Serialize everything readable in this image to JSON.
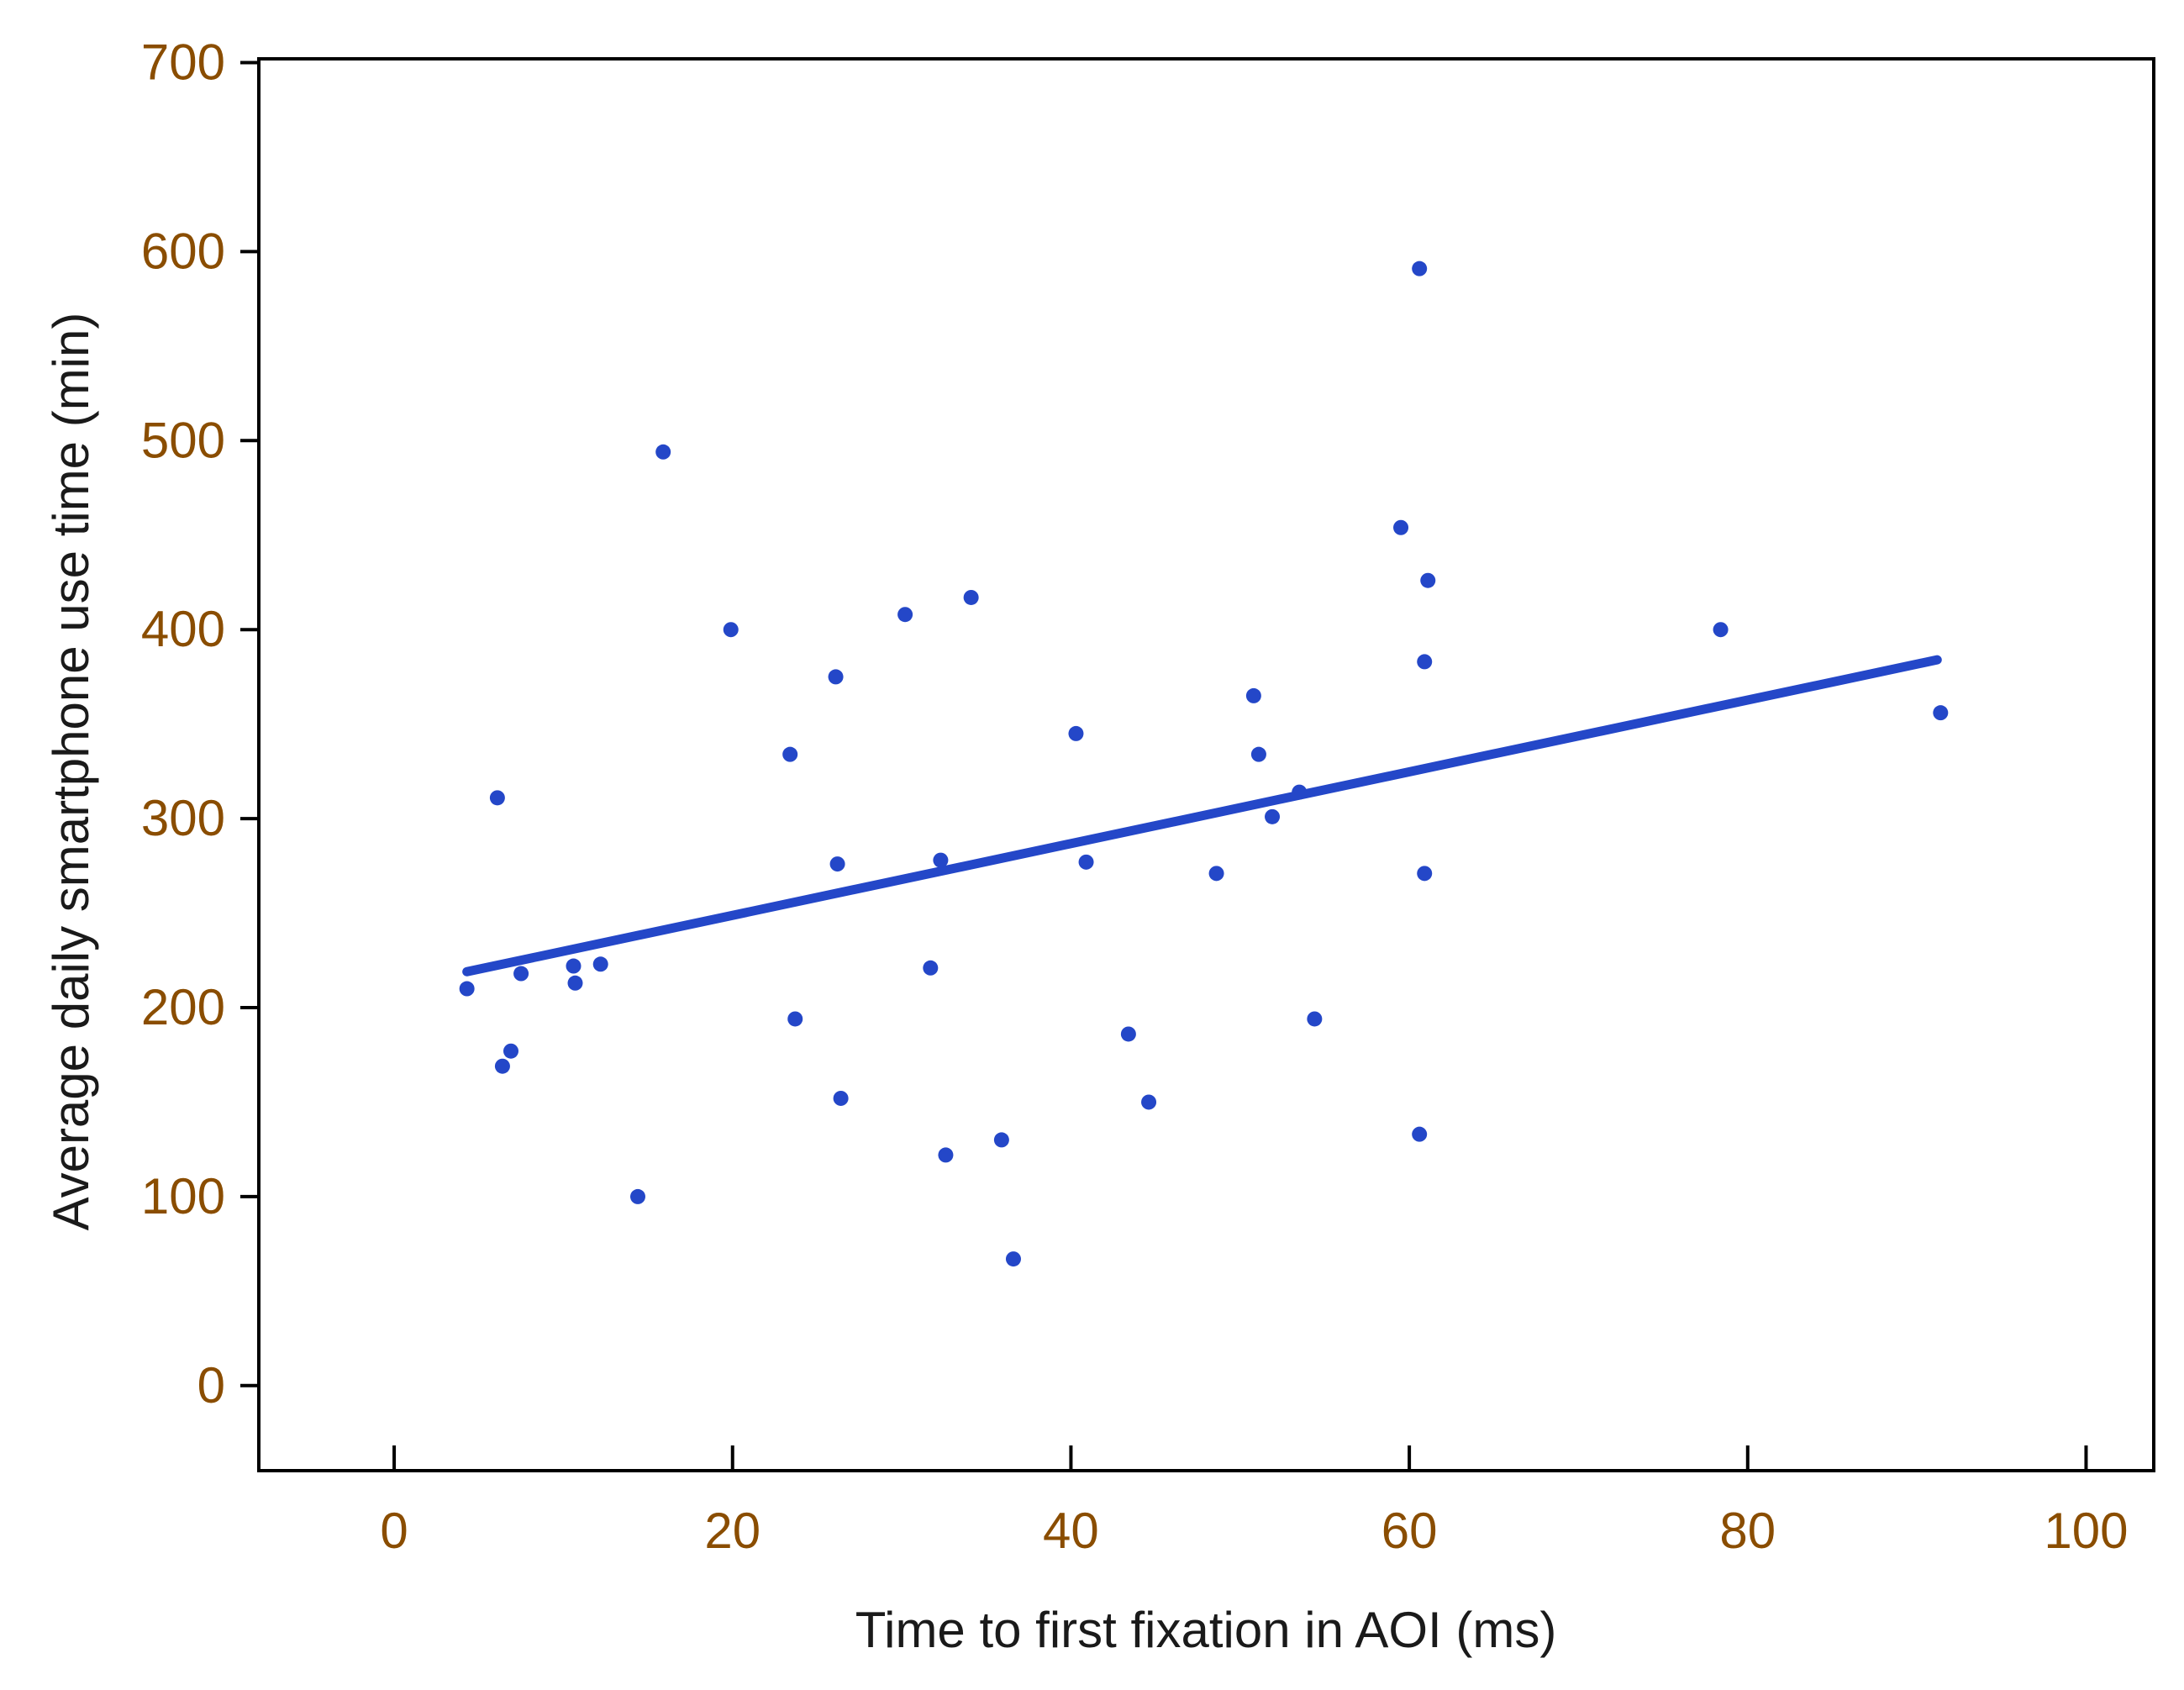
{
  "colors": {
    "points": "#2447c8",
    "fit_line": "#2447c8",
    "tick_labels": "#8a4d00",
    "axis_titles": "#1a1a1a",
    "frame": "#000000"
  },
  "chart_data": {
    "type": "scatter",
    "title": "",
    "xlabel": "Time to first fixation in AOI (ms)",
    "ylabel": "Average daily smartphone use time (min)",
    "xlim": [
      -8,
      104
    ],
    "ylim": [
      -45,
      702
    ],
    "xticks": [
      0,
      20,
      40,
      60,
      80,
      100
    ],
    "yticks": [
      0,
      100,
      200,
      300,
      400,
      500,
      600,
      700
    ],
    "grid": false,
    "legend": "none",
    "series": [
      {
        "points": [
          [
            4.3,
            210
          ],
          [
            6.1,
            311
          ],
          [
            6.4,
            169
          ],
          [
            6.9,
            177
          ],
          [
            7.5,
            218
          ],
          [
            10.6,
            222
          ],
          [
            10.7,
            213
          ],
          [
            12.2,
            223
          ],
          [
            14.4,
            100
          ],
          [
            15.9,
            494
          ],
          [
            19.9,
            400
          ],
          [
            23.4,
            334
          ],
          [
            23.7,
            194
          ],
          [
            26.1,
            375
          ],
          [
            26.2,
            276
          ],
          [
            26.4,
            152
          ],
          [
            30.2,
            408
          ],
          [
            31.7,
            221
          ],
          [
            32.3,
            278
          ],
          [
            32.6,
            122
          ],
          [
            34.1,
            417
          ],
          [
            35.9,
            130
          ],
          [
            36.6,
            67
          ],
          [
            40.3,
            345
          ],
          [
            40.9,
            277
          ],
          [
            43.4,
            186
          ],
          [
            44.6,
            150
          ],
          [
            48.6,
            271
          ],
          [
            50.8,
            365
          ],
          [
            51.1,
            334
          ],
          [
            51.9,
            301
          ],
          [
            53.5,
            314
          ],
          [
            54.4,
            194
          ],
          [
            59.5,
            454
          ],
          [
            60.6,
            591
          ],
          [
            60.6,
            133
          ],
          [
            60.9,
            383
          ],
          [
            60.9,
            271
          ],
          [
            61.1,
            426
          ],
          [
            78.4,
            400
          ],
          [
            91.4,
            356
          ]
        ]
      }
    ],
    "fit_line": {
      "x": [
        4.3,
        91.2
      ],
      "y": [
        219,
        384
      ]
    }
  }
}
